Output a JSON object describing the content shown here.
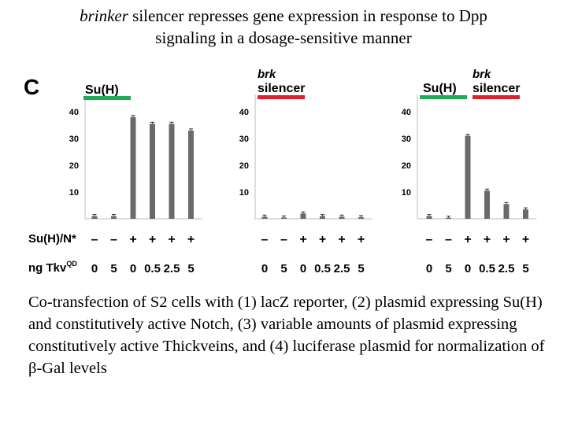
{
  "title": {
    "italic": "brinker",
    "line1_rest": " silencer represses gene expression in response to Dpp",
    "line2": "signaling in a dosage-sensitive manner"
  },
  "panel_letter": "C",
  "row_labels": {
    "suh_nstar": "Su(H)/N*",
    "tkv": "ng Tkv",
    "tkv_sup": "QD"
  },
  "legend": {
    "suh": "Su(H)",
    "brk": "brk",
    "silencer": "silencer",
    "suh_color": "#1faa55",
    "silencer_color": "#e0202a"
  },
  "bar_color": "#6a6a6a",
  "caption": {
    "part1": "Co-transfection of S2 cells with (1) lacZ reporter, (2) plasmid expressing Su(H) and constitutively active Notch, (3) variable amounts of plasmid expressing constitutively active Thickveins, and (4) luciferase plasmid for normalization of ",
    "beta": "β",
    "part2": "-Gal levels"
  },
  "chart_data": [
    {
      "type": "bar",
      "legend_labels": [
        "Su(H)"
      ],
      "categories": [
        "0",
        "5",
        "0",
        "0.5",
        "2.5",
        "5"
      ],
      "suh_nstar": [
        "–",
        "–",
        "+",
        "+",
        "+",
        "+"
      ],
      "values": [
        1,
        1,
        38,
        35.5,
        35.5,
        33
      ],
      "yticks": [
        10,
        20,
        30,
        40
      ],
      "ylim": [
        0,
        45
      ]
    },
    {
      "type": "bar",
      "legend_labels": [
        "brk",
        "silencer"
      ],
      "categories": [
        "0",
        "5",
        "0",
        "0.5",
        "2.5",
        "5"
      ],
      "suh_nstar": [
        "–",
        "–",
        "+",
        "+",
        "+",
        "+"
      ],
      "values": [
        0.8,
        0.5,
        2,
        1,
        0.8,
        0.6
      ],
      "yticks": [
        10,
        20,
        30,
        40
      ],
      "ylim": [
        0,
        45
      ]
    },
    {
      "type": "bar",
      "legend_labels": [
        "Su(H)",
        "brk",
        "silencer"
      ],
      "categories": [
        "0",
        "5",
        "0",
        "0.5",
        "2.5",
        "5"
      ],
      "suh_nstar": [
        "–",
        "–",
        "+",
        "+",
        "+",
        "+"
      ],
      "values": [
        1,
        0.4,
        31,
        10.5,
        5.5,
        3.5
      ],
      "yticks": [
        10,
        20,
        30,
        40
      ],
      "ylim": [
        0,
        45
      ]
    }
  ]
}
